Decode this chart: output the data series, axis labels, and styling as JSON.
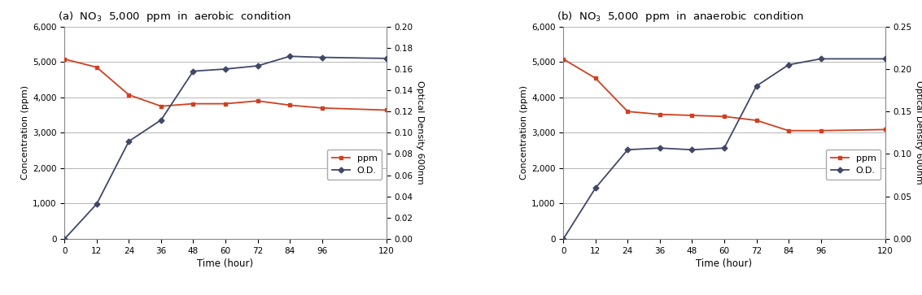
{
  "time": [
    0,
    12,
    24,
    36,
    48,
    60,
    72,
    84,
    96,
    120
  ],
  "aerobic": {
    "ppm": [
      5080,
      4850,
      4070,
      3750,
      3820,
      3820,
      3900,
      3780,
      3700,
      3640
    ],
    "od": [
      0.0,
      0.033,
      0.092,
      0.112,
      0.158,
      0.16,
      0.163,
      0.172,
      0.171,
      0.17
    ],
    "ppm_ylim": [
      0,
      6000
    ],
    "od_ylim": [
      0,
      0.2
    ],
    "od_yticks": [
      0,
      0.02,
      0.04,
      0.06,
      0.08,
      0.1,
      0.12,
      0.14,
      0.16,
      0.18,
      0.2
    ],
    "title": "(a)  NO$_3$  5,000  ppm  in  aerobic  condition"
  },
  "anaerobic": {
    "ppm": [
      5080,
      4540,
      3600,
      3520,
      3490,
      3460,
      3350,
      3060,
      3060,
      3090
    ],
    "od": [
      0.0,
      0.06,
      0.105,
      0.107,
      0.105,
      0.107,
      0.18,
      0.205,
      0.212,
      0.212
    ],
    "ppm_ylim": [
      0,
      6000
    ],
    "od_ylim": [
      0,
      0.25
    ],
    "od_yticks": [
      0,
      0.05,
      0.1,
      0.15,
      0.2,
      0.25
    ],
    "title": "(b)  NO$_3$  5,000  ppm  in  anaerobic  condition"
  },
  "ppm_color": "#d04020",
  "od_color": "#404868",
  "ppm_yticks": [
    0,
    1000,
    2000,
    3000,
    4000,
    5000,
    6000
  ],
  "xticks": [
    0,
    12,
    24,
    36,
    48,
    60,
    72,
    84,
    96,
    120
  ],
  "xlabel": "Time (hour)",
  "ylabel_left": "Concentration (ppm)",
  "ylabel_right": "Optical Density 600nm",
  "legend_ppm": "ppm",
  "legend_od": "O.D."
}
